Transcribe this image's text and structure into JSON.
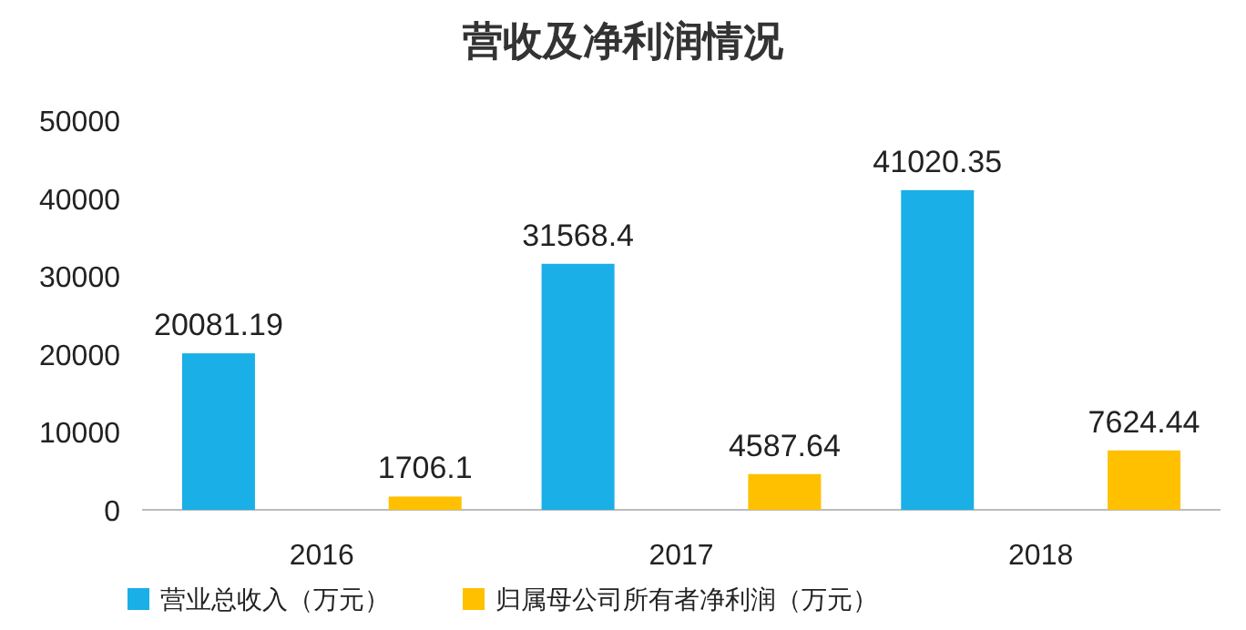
{
  "chart_data": {
    "type": "bar",
    "title": "营收及净利润情况",
    "categories": [
      "2016",
      "2017",
      "2018"
    ],
    "series": [
      {
        "name": "营业总收入（万元）",
        "color": "#1aafe6",
        "values": [
          20081.19,
          31568.4,
          41020.35
        ]
      },
      {
        "name": "归属母公司所有者净利润（万元）",
        "color": "#ffc000",
        "values": [
          1706.1,
          4587.64,
          7624.44
        ]
      }
    ],
    "ylim": [
      0,
      50000
    ],
    "yticks": [
      0,
      10000,
      20000,
      30000,
      40000,
      50000
    ],
    "data_labels": true,
    "grid": false,
    "legend": "bottom"
  }
}
